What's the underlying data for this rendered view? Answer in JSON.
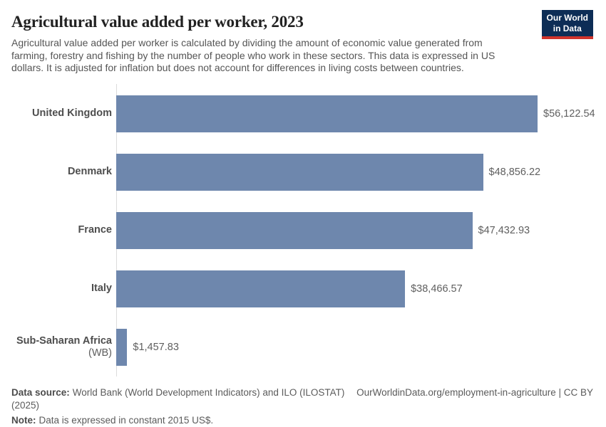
{
  "header": {
    "title": "Agricultural value added per worker, 2023",
    "subtitle": "Agricultural value added per worker is calculated by dividing the amount of economic value generated from\nfarming, forestry and fishing by the number of people who work in these sectors. This data is expressed in US\ndollars. It is adjusted for inflation but does not account for differences in living costs between countries.",
    "logo": {
      "line1": "Our World",
      "line2": "in Data"
    }
  },
  "chart_data": {
    "type": "bar",
    "orientation": "horizontal",
    "title": "Agricultural value added per worker, 2023",
    "categories": [
      "United Kingdom",
      "Denmark",
      "France",
      "Italy",
      "Sub-Saharan Africa"
    ],
    "category_suffixes": [
      "",
      "",
      "",
      "",
      " (WB)"
    ],
    "values": [
      56122.54,
      48856.22,
      47432.93,
      38466.57,
      1457.83
    ],
    "value_labels": [
      "$56,122.54",
      "$48,856.22",
      "$47,432.93",
      "$38,466.57",
      "$1,457.83"
    ],
    "unit": "constant 2015 US$",
    "xlim": [
      0,
      56122.54
    ],
    "grid": false,
    "legend": false,
    "bar_color": "#6e87ad",
    "axis_color": "#dcdcdc"
  },
  "footer": {
    "source_label": "Data source:",
    "source_text": "World Bank (World Development Indicators) and ILO (ILOSTAT) (2025)",
    "link_text": "OurWorldinData.org/employment-in-agriculture | CC BY",
    "note_label": "Note:",
    "note_text": "Data is expressed in constant 2015 US$."
  }
}
